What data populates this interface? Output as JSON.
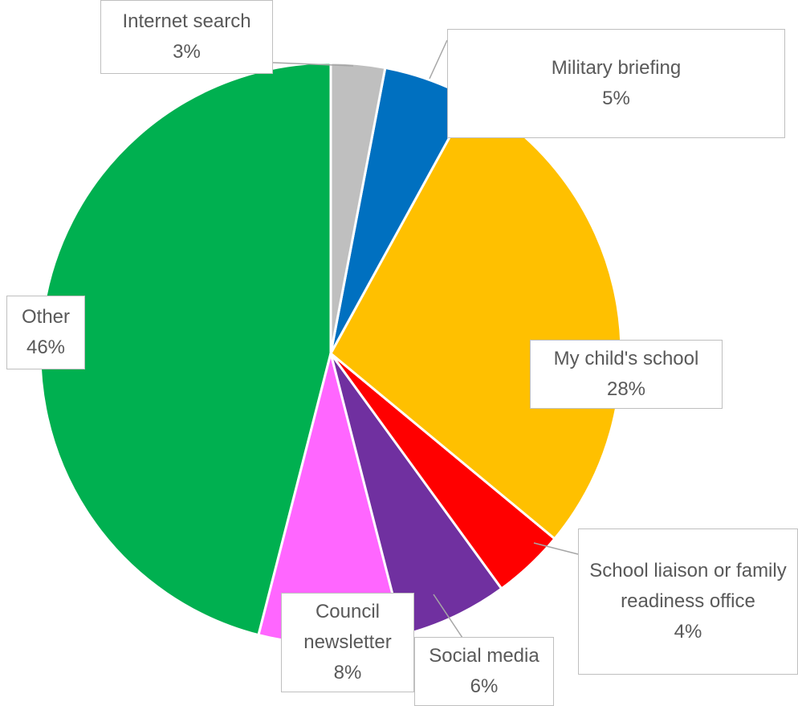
{
  "chart_data": {
    "type": "pie",
    "categories": [
      "Internet search",
      "Military briefing",
      "My child's school",
      "School liaison or family readiness office",
      "Social media",
      "Council newsletter",
      "Other"
    ],
    "values": [
      3,
      5,
      28,
      4,
      6,
      8,
      46
    ],
    "value_labels": [
      "3%",
      "5%",
      "28%",
      "4%",
      "6%",
      "8%",
      "46%"
    ],
    "colors": [
      "#bfbfbf",
      "#0070c0",
      "#ffc000",
      "#ff0000",
      "#7030a0",
      "#ff66ff",
      "#00b050"
    ]
  }
}
